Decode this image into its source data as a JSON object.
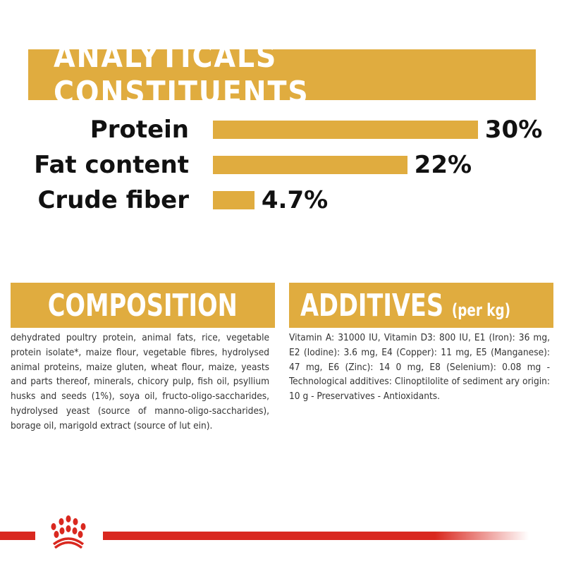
{
  "analytical": {
    "title": "ANALYTICALS CONSTITUENTS",
    "items": [
      {
        "label": "Protein",
        "value": 30,
        "display": "30%"
      },
      {
        "label": "Fat content",
        "value": 22,
        "display": "22%"
      },
      {
        "label": "Crude fiber",
        "value": 4.7,
        "display": "4.7%"
      }
    ]
  },
  "composition": {
    "title": "COMPOSITION",
    "text": "dehydrated poultry protein, animal fats, rice, vegetable protein isolate*, maize flour, vegetable fibres, hydrolysed animal proteins, maize gluten, wheat flour, maize, yeasts and parts thereof, minerals, chicory pulp, fish oil, psyllium husks and seeds (1%), soya oil, fructo-oligo-saccharides, hydrolysed yeast (source of manno-oligo-saccharides), borage oil, marigold extract (source of lut ein)."
  },
  "additives": {
    "title": "ADDITIVES",
    "unit": "(per kg)",
    "text": "Vitamin A: 31000 IU, Vitamin D3: 800 IU, E1 (Iron): 36 mg, E2 (Iodine): 3.6 mg, E4 (Copper): 11 mg, E5 (Manganese): 47 mg, E6 (Zinc): 14 0 mg, E8 (Selenium): 0.08 mg -Technological additives: Clinoptilolite of sediment ary origin: 10 g - Preservatives - Antioxidants."
  },
  "colors": {
    "accent": "#e0ac3f",
    "brand_red": "#d9281f"
  },
  "footer": {
    "logo": "royal-canin-crown-icon"
  }
}
